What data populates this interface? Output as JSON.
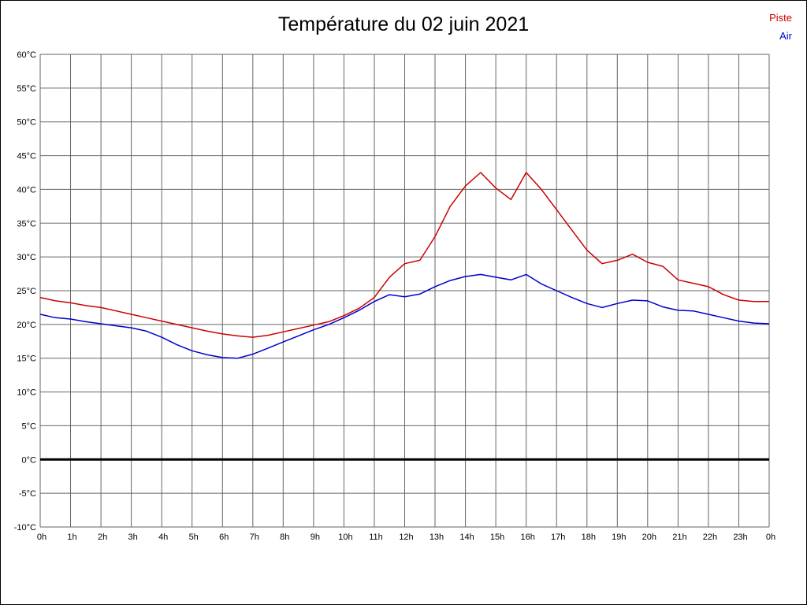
{
  "page": {
    "title": "Température du 02 juin 2021"
  },
  "legend": {
    "items": [
      {
        "label": "Piste",
        "color": "#cc0000"
      },
      {
        "label": "Air",
        "color": "#0000cc"
      }
    ]
  },
  "chart_data": {
    "type": "line",
    "title": "Température du 02 juin 2021",
    "xlabel": "",
    "ylabel": "",
    "xlim": [
      0,
      24
    ],
    "ylim": [
      -10,
      60
    ],
    "xtick_step": 1,
    "ytick_step": 5,
    "grid": true,
    "grid_color": "#666666",
    "legend_position": "top-right",
    "zero_line": {
      "value": 0,
      "color": "#000000",
      "width": 3
    },
    "xtick_labels": [
      "0h",
      "1h",
      "2h",
      "3h",
      "4h",
      "5h",
      "6h",
      "7h",
      "8h",
      "9h",
      "10h",
      "11h",
      "12h",
      "13h",
      "14h",
      "15h",
      "16h",
      "17h",
      "18h",
      "19h",
      "20h",
      "21h",
      "22h",
      "23h",
      "0h"
    ],
    "ytick_labels": [
      "60°C",
      "55°C",
      "50°C",
      "45°C",
      "40°C",
      "35°C",
      "30°C",
      "25°C",
      "20°C",
      "15°C",
      "10°C",
      "5°C",
      "0°C",
      "-5°C",
      "-10°C"
    ],
    "x": [
      0,
      0.5,
      1,
      1.5,
      2,
      2.5,
      3,
      3.5,
      4,
      4.5,
      5,
      5.5,
      6,
      6.5,
      7,
      7.5,
      8,
      8.5,
      9,
      9.5,
      10,
      10.5,
      11,
      11.5,
      12,
      12.5,
      13,
      13.5,
      14,
      14.5,
      15,
      15.5,
      16,
      16.5,
      17,
      17.5,
      18,
      18.5,
      19,
      19.5,
      20,
      20.5,
      21,
      21.5,
      22,
      22.5,
      23,
      23.5,
      24
    ],
    "series": [
      {
        "name": "Piste",
        "color": "#cc0000",
        "values": [
          24.0,
          23.5,
          23.2,
          22.8,
          22.5,
          22.0,
          21.5,
          21.0,
          20.5,
          20.0,
          19.5,
          19.0,
          18.6,
          18.3,
          18.1,
          18.4,
          18.9,
          19.4,
          19.9,
          20.4,
          21.3,
          22.4,
          24.0,
          27.0,
          29.0,
          29.5,
          33.0,
          37.5,
          40.5,
          42.5,
          40.2,
          38.5,
          42.5,
          40.0,
          37.0,
          34.0,
          31.0,
          29.0,
          29.5,
          30.4,
          29.2,
          28.6,
          26.6,
          26.1,
          25.6,
          24.4,
          23.6,
          23.4,
          23.4
        ]
      },
      {
        "name": "Air",
        "color": "#0000cc",
        "values": [
          21.5,
          21.0,
          20.8,
          20.4,
          20.1,
          19.8,
          19.5,
          19.0,
          18.1,
          17.0,
          16.1,
          15.5,
          15.1,
          15.0,
          15.6,
          16.5,
          17.4,
          18.3,
          19.2,
          20.0,
          21.0,
          22.1,
          23.4,
          24.4,
          24.1,
          24.5,
          25.6,
          26.5,
          27.1,
          27.4,
          27.0,
          26.6,
          27.4,
          26.0,
          25.0,
          24.0,
          23.1,
          22.5,
          23.1,
          23.6,
          23.5,
          22.6,
          22.1,
          22.0,
          21.5,
          21.0,
          20.5,
          20.2,
          20.1
        ]
      }
    ]
  }
}
